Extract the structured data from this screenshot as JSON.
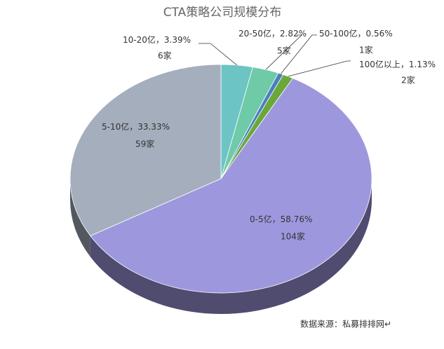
{
  "chart_data": {
    "type": "pie",
    "title": "CTA策略公司规模分布",
    "categories": [
      "10-20亿",
      "20-50亿",
      "50-100亿",
      "100亿以上",
      "0-5亿",
      "5-10亿"
    ],
    "label_separator": "，",
    "values": [
      3.39,
      2.82,
      0.56,
      1.13,
      58.76,
      33.33
    ],
    "value_labels": [
      "3.39%",
      "2.82%",
      "0.56%",
      "1.13%",
      "58.76%",
      "33.33%"
    ],
    "counts": [
      6,
      5,
      1,
      2,
      104,
      59
    ],
    "count_labels": [
      "6家",
      "5家",
      "1家",
      "2家",
      "104家",
      "59家"
    ],
    "colors": [
      "#6cc5c4",
      "#6fcaa8",
      "#4b7fc2",
      "#6aa83c",
      "#9d98dd",
      "#a5aebd"
    ],
    "source": "数据来源：私募排排网↵"
  }
}
